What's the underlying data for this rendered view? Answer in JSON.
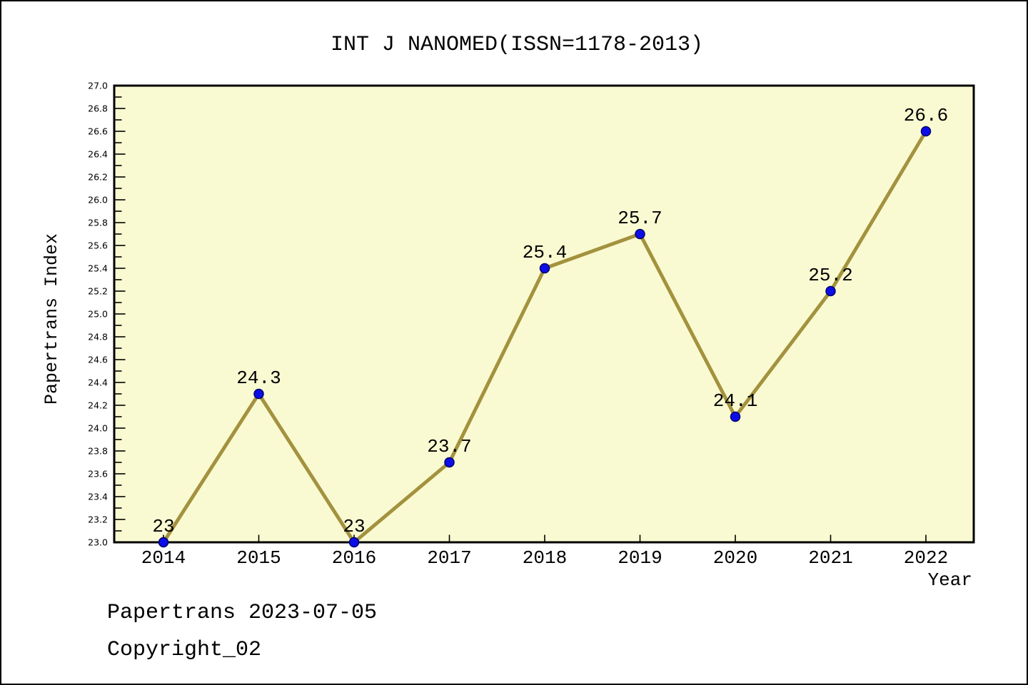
{
  "title": "INT J NANOMED(ISSN=1178-2013)",
  "footer": {
    "line1": "Papertrans 2023-07-05",
    "line2": "Copyright_02"
  },
  "chart_data": {
    "type": "line",
    "title": "INT J NANOMED(ISSN=1178-2013)",
    "xlabel": "Year",
    "ylabel": "Papertrans Index",
    "categories": [
      2014,
      2015,
      2016,
      2017,
      2018,
      2019,
      2020,
      2021,
      2022
    ],
    "values": [
      23,
      24.3,
      23,
      23.7,
      25.4,
      25.7,
      24.1,
      25.2,
      26.6
    ],
    "point_labels": [
      "23",
      "24.3",
      "23",
      "23.7",
      "25.4",
      "25.7",
      "24.1",
      "25.2",
      "26.6"
    ],
    "ylim": [
      23.0,
      27.0
    ],
    "y_major_step": 0.2,
    "y_minor_step": 0.1,
    "grid": false,
    "legend": "none",
    "colors": {
      "plot_background": "#FAFAD2",
      "line": "#A3923E",
      "marker_fill": "#0D0DE8",
      "marker_edge": "#00006B",
      "axis": "#000000",
      "text": "#000000",
      "page_background": "#FFFFFF"
    }
  }
}
